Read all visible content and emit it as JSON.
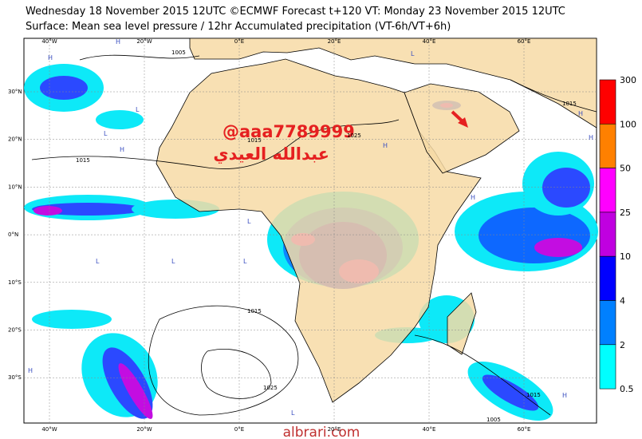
{
  "header": {
    "line1": "Wednesday 18 November 2015 12UTC ©ECMWF Forecast t+120 VT: Monday 23 November 2015 12UTC",
    "line2": "Surface: Mean sea level pressure / 12hr Accumulated precipitation (VT-6h/VT+6h)"
  },
  "longitude_labels": [
    "40°W",
    "20°W",
    "0°E",
    "20°E",
    "40°E",
    "60°E"
  ],
  "latitude_labels": [
    "30°N",
    "20°N",
    "10°N",
    "0°N",
    "10°S",
    "20°S",
    "30°S"
  ],
  "colorbar": {
    "labels": [
      300,
      100,
      50,
      25,
      10,
      4,
      2,
      0.5
    ],
    "colors": [
      "#ff0000",
      "#ff8000",
      "#ff00ff",
      "#c000e0",
      "#0000ff",
      "#0080ff",
      "#00ffff"
    ]
  },
  "isobar_labels": [
    "1005",
    "1015",
    "1015",
    "1015",
    "1015",
    "1025",
    "1015",
    "1005",
    "1025"
  ],
  "pressure_centers": [
    "H",
    "H",
    "L",
    "H",
    "L",
    "L",
    "L",
    "H",
    "L",
    "H",
    "H",
    "L",
    "H",
    "L",
    "H",
    "H",
    "L"
  ],
  "watermark": {
    "handle": "@aaa7789999",
    "name": "عبدالله العيدي",
    "site": "albrari.com"
  }
}
